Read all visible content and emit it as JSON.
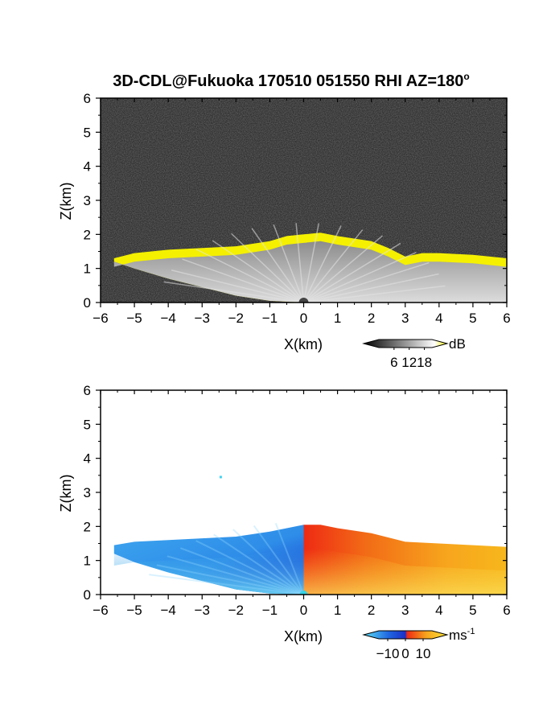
{
  "title": "3D-CDL@Fukuoka 170510 051550 RHI AZ=180",
  "title_superscript": "o",
  "chart_data": [
    {
      "type": "heatmap",
      "quantity": "SNR",
      "xlabel": "X(km)",
      "ylabel": "Z(km)",
      "xlim": [
        -6,
        6
      ],
      "ylim": [
        0,
        6
      ],
      "xticks": [
        -6,
        -5,
        -4,
        -3,
        -2,
        -1,
        0,
        1,
        2,
        3,
        4,
        5,
        6
      ],
      "yticks": [
        0,
        1,
        2,
        3,
        4,
        5,
        6
      ],
      "colorbar": {
        "unit": "dB",
        "ticks": [
          6,
          12,
          18
        ],
        "palette": "grayscale with yellow above 18"
      },
      "echo_top": {
        "x": [
          -5.6,
          -5.0,
          -4.0,
          -3.0,
          -2.0,
          -1.0,
          -0.5,
          0.0,
          0.5,
          1.0,
          2.0,
          2.5,
          3.0,
          3.5,
          4.0,
          5.0,
          6.0
        ],
        "z": [
          1.3,
          1.45,
          1.55,
          1.6,
          1.65,
          1.8,
          1.95,
          2.0,
          2.05,
          1.95,
          1.8,
          1.6,
          1.35,
          1.45,
          1.45,
          1.4,
          1.3
        ]
      },
      "echo_bottom": {
        "x": [
          -5.6,
          -5.0,
          -4.0,
          -3.0,
          -2.0,
          -1.0,
          0.0,
          1.0,
          2.0,
          3.0,
          4.0,
          5.0,
          6.0
        ],
        "z": [
          1.2,
          1.0,
          0.7,
          0.45,
          0.2,
          0.05,
          0.0,
          0.0,
          0.0,
          0.0,
          0.0,
          0.0,
          0.0
        ]
      }
    },
    {
      "type": "heatmap",
      "quantity": "Doppler velocity",
      "xlabel": "X(km)",
      "ylabel": "Z(km)",
      "xlim": [
        -6,
        6
      ],
      "ylim": [
        0,
        6
      ],
      "xticks": [
        -6,
        -5,
        -4,
        -3,
        -2,
        -1,
        0,
        1,
        2,
        3,
        4,
        5,
        6
      ],
      "yticks": [
        0,
        1,
        2,
        3,
        4,
        5,
        6
      ],
      "colorbar": {
        "unit": "ms",
        "unit_superscript": "-1",
        "ticks": [
          -10,
          0,
          10
        ],
        "palette": "cyan-blue-red-yellow"
      },
      "isolated_point": {
        "x": -2.45,
        "z": 3.45
      },
      "echo_top": {
        "x": [
          -5.6,
          -5.0,
          -4.0,
          -3.0,
          -2.0,
          -1.0,
          -0.5,
          0.0,
          0.5,
          1.0,
          2.0,
          3.0,
          4.0,
          5.0,
          6.0
        ],
        "z": [
          1.45,
          1.55,
          1.6,
          1.65,
          1.7,
          1.85,
          1.95,
          2.05,
          2.05,
          1.95,
          1.8,
          1.55,
          1.5,
          1.45,
          1.4
        ]
      },
      "echo_bottom": {
        "x": [
          -5.6,
          -5.0,
          -4.0,
          -3.0,
          -2.0,
          -1.0,
          0.0,
          1.0,
          2.0,
          3.0,
          4.0,
          5.0,
          6.0
        ],
        "z": [
          1.2,
          0.95,
          0.65,
          0.4,
          0.15,
          0.03,
          0.0,
          0.0,
          0.0,
          0.0,
          0.0,
          0.0,
          0.0
        ]
      }
    }
  ]
}
